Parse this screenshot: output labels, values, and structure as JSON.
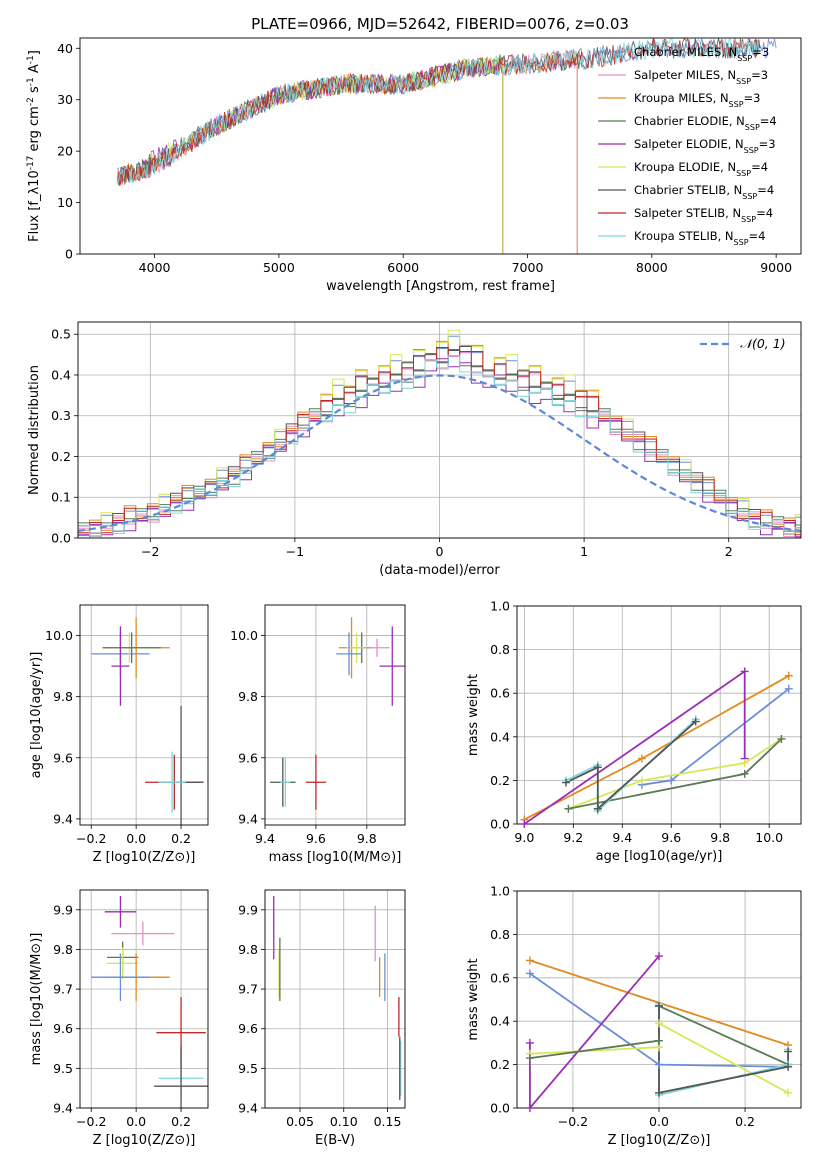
{
  "figure": {
    "title": "PLATE=0966, MJD=52642, FIBERID=0076, z=0.03"
  },
  "colors": {
    "Chabrier MILES": "#6a8fd8",
    "Salpeter MILES": "#e58fd0",
    "Kroupa MILES": "#e38a1d",
    "Chabrier ELODIE": "#5a7a56",
    "Salpeter ELODIE": "#9a2fb5",
    "Kroupa ELODIE": "#d6e85a",
    "Chabrier STELIB": "#555555",
    "Salpeter STELIB": "#c0282a",
    "Kroupa STELIB": "#7fd6dc",
    "gaussian": "#5b8ad6",
    "grid": "#b0b0b0"
  },
  "chart_data": [
    {
      "type": "line",
      "panel": "spectrum",
      "xlabel": "wavelength [Angstrom, rest frame]",
      "ylabel": "Flux [f_λ10^-17 erg cm^-2 s^-1 A^-1]",
      "xlim": [
        3400,
        9200
      ],
      "ylim": [
        0,
        42
      ],
      "xticks": [
        "4000",
        "5000",
        "6000",
        "7000",
        "8000",
        "9000"
      ],
      "yticks": [
        "0",
        "10",
        "20",
        "30",
        "40"
      ],
      "grid": false,
      "legend_position": "top-right",
      "series": [
        {
          "name": "Chabrier MILES, N_SSP=3",
          "key": "Chabrier MILES",
          "x": [
            3700,
            4000,
            4500,
            5000,
            5500,
            6000,
            6500,
            7000,
            7400,
            8000,
            8500,
            9000
          ],
          "y": [
            15,
            17,
            25,
            31,
            33,
            33,
            36,
            37,
            38,
            40,
            40,
            40
          ]
        },
        {
          "name": "Salpeter MILES, N_SSP=3",
          "key": "Salpeter MILES",
          "x": [
            3700,
            4000,
            4500,
            5000,
            5500,
            6000,
            6500,
            7000,
            7400
          ],
          "y": [
            15,
            17,
            25,
            31,
            33,
            33,
            36,
            37,
            38
          ]
        },
        {
          "name": "Kroupa MILES, N_SSP=3",
          "key": "Kroupa MILES",
          "x": [
            3700,
            4000,
            4500,
            5000,
            5500,
            6000,
            6500,
            7000,
            7400
          ],
          "y": [
            15,
            17,
            25,
            31,
            33,
            33,
            36,
            37,
            38
          ]
        },
        {
          "name": "Chabrier ELODIE, N_SSP=4",
          "key": "Chabrier ELODIE",
          "x": [
            3900,
            4500,
            5000,
            5500,
            6000,
            6500,
            6800
          ],
          "y": [
            17,
            25,
            31,
            33,
            33,
            36,
            37
          ]
        },
        {
          "name": "Salpeter ELODIE, N_SSP=3",
          "key": "Salpeter ELODIE",
          "x": [
            3900,
            4500,
            5000,
            5500,
            6000,
            6500,
            6800
          ],
          "y": [
            17,
            25,
            31,
            33,
            33,
            36,
            37
          ]
        },
        {
          "name": "Kroupa ELODIE, N_SSP=4",
          "key": "Kroupa ELODIE",
          "x": [
            3900,
            4500,
            5000,
            5500,
            6000,
            6500,
            6800
          ],
          "y": [
            17,
            25,
            31,
            33,
            33,
            36,
            37
          ]
        },
        {
          "name": "Chabrier STELIB, N_SSP=4",
          "key": "Chabrier STELIB",
          "x": [
            3700,
            4000,
            4500,
            5000,
            5500,
            6000,
            6500,
            7000,
            7500,
            8000,
            8500,
            8870
          ],
          "y": [
            15,
            17,
            25,
            31,
            33,
            33,
            36,
            37,
            38,
            40,
            40,
            40
          ]
        },
        {
          "name": "Salpeter STELIB, N_SSP=4",
          "key": "Salpeter STELIB",
          "x": [
            3700,
            4000,
            4500,
            5000,
            5500,
            6000,
            6500,
            7000,
            7500,
            8000,
            8500,
            8870
          ],
          "y": [
            15,
            17,
            25,
            31,
            33,
            33,
            36,
            37,
            38,
            40,
            40,
            40
          ]
        },
        {
          "name": "Kroupa STELIB, N_SSP=4",
          "key": "Kroupa STELIB",
          "x": [
            3700,
            4000,
            4500,
            5000,
            5500,
            6000,
            6500,
            7000,
            7500,
            8000,
            8500,
            8870
          ],
          "y": [
            15,
            17,
            25,
            31,
            33,
            33,
            36,
            37,
            38,
            40,
            40,
            40
          ]
        }
      ]
    },
    {
      "type": "line",
      "panel": "residuals",
      "xlabel": "(data-model)/error",
      "ylabel": "Normed distribution",
      "xlim": [
        -2.5,
        2.5
      ],
      "ylim": [
        0,
        0.53
      ],
      "xticks": [
        "−2",
        "−1",
        "0",
        "1",
        "2"
      ],
      "yticks": [
        "0.0",
        "0.1",
        "0.2",
        "0.3",
        "0.4",
        "0.5"
      ],
      "grid": true,
      "legend_position": "top-right",
      "legend_label": "𝒩(0, 1)",
      "bin_edges_start": -2.5,
      "bin_width": 0.1,
      "histogram_base": [
        0.02,
        0.025,
        0.03,
        0.04,
        0.05,
        0.055,
        0.065,
        0.075,
        0.09,
        0.1,
        0.11,
        0.125,
        0.14,
        0.155,
        0.175,
        0.195,
        0.215,
        0.235,
        0.26,
        0.28,
        0.3,
        0.32,
        0.34,
        0.35,
        0.37,
        0.38,
        0.39,
        0.4,
        0.41,
        0.42,
        0.44,
        0.45,
        0.46,
        0.45,
        0.43,
        0.4,
        0.41,
        0.4,
        0.39,
        0.38,
        0.37,
        0.36,
        0.35,
        0.34,
        0.32,
        0.3,
        0.28,
        0.26,
        0.24,
        0.22,
        0.2,
        0.18,
        0.16,
        0.14,
        0.12,
        0.1,
        0.08,
        0.065,
        0.05,
        0.04,
        0.035,
        0.03,
        0.025,
        0.02
      ],
      "series": [
        {
          "name": "Chabrier MILES",
          "key": "Chabrier MILES",
          "offset": 0.01
        },
        {
          "name": "Salpeter MILES",
          "key": "Salpeter MILES",
          "offset": -0.01
        },
        {
          "name": "Kroupa MILES",
          "key": "Kroupa MILES",
          "offset": 0.015
        },
        {
          "name": "Chabrier ELODIE",
          "key": "Chabrier ELODIE",
          "offset": -0.005
        },
        {
          "name": "Salpeter ELODIE",
          "key": "Salpeter ELODIE",
          "offset": -0.02
        },
        {
          "name": "Kroupa ELODIE",
          "key": "Kroupa ELODIE",
          "offset": 0.02
        },
        {
          "name": "Chabrier STELIB",
          "key": "Chabrier STELIB",
          "offset": 0.0
        },
        {
          "name": "Salpeter STELIB",
          "key": "Salpeter STELIB",
          "offset": 0.005
        },
        {
          "name": "Kroupa STELIB",
          "key": "Kroupa STELIB",
          "offset": -0.015
        }
      ]
    },
    {
      "type": "scatter",
      "panel": "Z-age",
      "xlabel": "Z [log10(Z/Z⊙)]",
      "ylabel": "age [log10(age/yr)]",
      "xlim": [
        -0.25,
        0.32
      ],
      "ylim": [
        9.38,
        10.1
      ],
      "xticks": [
        "−0.2",
        "0.0",
        "0.2"
      ],
      "yticks": [
        "9.4",
        "9.6",
        "9.8",
        "10.0"
      ],
      "grid": true,
      "points": [
        {
          "key": "Chabrier MILES",
          "x": -0.07,
          "y": 9.94,
          "xerr": 0.13,
          "yerr": 0.07
        },
        {
          "key": "Kroupa MILES",
          "x": 0.0,
          "y": 9.96,
          "xerr": 0.15,
          "yerr": 0.1
        },
        {
          "key": "Kroupa ELODIE",
          "x": -0.03,
          "y": 9.96,
          "xerr": 0.12,
          "yerr": 0.05
        },
        {
          "key": "Chabrier ELODIE",
          "x": -0.02,
          "y": 9.96,
          "xerr": 0.13,
          "yerr": 0.05
        },
        {
          "key": "Salpeter ELODIE",
          "x": -0.07,
          "y": 9.9,
          "xerr": 0.04,
          "yerr": 0.13
        },
        {
          "key": "Salpeter STELIB",
          "x": 0.17,
          "y": 9.52,
          "xerr": 0.13,
          "yerr": 0.09
        },
        {
          "key": "Chabrier STELIB",
          "x": 0.2,
          "y": 9.52,
          "xerr": 0.1,
          "yerr": 0.25
        },
        {
          "key": "Kroupa STELIB",
          "x": 0.16,
          "y": 9.52,
          "xerr": 0.06,
          "yerr": 0.1
        }
      ]
    },
    {
      "type": "scatter",
      "panel": "mass-age",
      "xlabel": "mass [log10(M/M⊙)]",
      "ylabel": "",
      "xlim": [
        9.4,
        9.95
      ],
      "ylim": [
        9.38,
        10.1
      ],
      "xticks": [
        "9.4",
        "9.6",
        "9.8"
      ],
      "yticks": [
        "9.4",
        "9.6",
        "9.8",
        "10.0"
      ],
      "grid": true,
      "points": [
        {
          "key": "Kroupa MILES",
          "x": 9.74,
          "y": 9.96,
          "xerr": 0.05,
          "yerr": 0.1
        },
        {
          "key": "Chabrier ELODIE",
          "x": 9.78,
          "y": 9.96,
          "xerr": 0.04,
          "yerr": 0.05
        },
        {
          "key": "Kroupa ELODIE",
          "x": 9.76,
          "y": 9.96,
          "xerr": 0.04,
          "yerr": 0.05
        },
        {
          "key": "Chabrier MILES",
          "x": 9.73,
          "y": 9.94,
          "xerr": 0.05,
          "yerr": 0.07
        },
        {
          "key": "Salpeter MILES",
          "x": 9.84,
          "y": 9.96,
          "xerr": 0.05,
          "yerr": 0.03
        },
        {
          "key": "Salpeter ELODIE",
          "x": 9.9,
          "y": 9.9,
          "xerr": 0.05,
          "yerr": 0.13
        },
        {
          "key": "Chabrier STELIB",
          "x": 9.47,
          "y": 9.52,
          "xerr": 0.05,
          "yerr": 0.08
        },
        {
          "key": "Kroupa STELIB",
          "x": 9.48,
          "y": 9.52,
          "xerr": 0.02,
          "yerr": 0.08
        },
        {
          "key": "Salpeter STELIB",
          "x": 9.6,
          "y": 9.52,
          "xerr": 0.04,
          "yerr": 0.09
        }
      ]
    },
    {
      "type": "line",
      "panel": "age-massweight",
      "xlabel": "age [log10(age/yr)]",
      "ylabel": "mass weight",
      "xlim": [
        8.97,
        10.13
      ],
      "ylim": [
        0,
        1
      ],
      "xticks": [
        "9.0",
        "9.2",
        "9.4",
        "9.6",
        "9.8",
        "10.0"
      ],
      "yticks": [
        "0.0",
        "0.2",
        "0.4",
        "0.6",
        "0.8",
        "1.0"
      ],
      "grid": true,
      "series": [
        {
          "key": "Chabrier MILES",
          "x": [
            10.08,
            9.6,
            9.48
          ],
          "y": [
            0.62,
            0.2,
            0.18
          ]
        },
        {
          "key": "Kroupa MILES",
          "x": [
            9.0,
            9.48,
            10.08
          ],
          "y": [
            0.02,
            0.3,
            0.68
          ]
        },
        {
          "key": "Salpeter ELODIE",
          "x": [
            9.0,
            9.9,
            9.9
          ],
          "y": [
            0.0,
            0.7,
            0.3
          ]
        },
        {
          "key": "Kroupa ELODIE",
          "x": [
            9.18,
            9.48,
            9.9,
            10.05
          ],
          "y": [
            0.07,
            0.2,
            0.28,
            0.39
          ]
        },
        {
          "key": "Chabrier ELODIE",
          "x": [
            9.18,
            9.9,
            10.05
          ],
          "y": [
            0.07,
            0.23,
            0.39
          ]
        },
        {
          "key": "Kroupa STELIB",
          "x": [
            9.17,
            9.3,
            9.3,
            9.7
          ],
          "y": [
            0.2,
            0.27,
            0.06,
            0.48
          ]
        },
        {
          "key": "Chabrier STELIB",
          "x": [
            9.17,
            9.3,
            9.3,
            9.7
          ],
          "y": [
            0.19,
            0.26,
            0.07,
            0.47
          ]
        }
      ]
    },
    {
      "type": "scatter",
      "panel": "Z-mass",
      "xlabel": "Z [log10(Z/Z⊙)]",
      "ylabel": "mass [log10(M/M⊙)]",
      "xlim": [
        -0.25,
        0.32
      ],
      "ylim": [
        9.4,
        9.95
      ],
      "xticks": [
        "−0.2",
        "0.0",
        "0.2"
      ],
      "yticks": [
        "9.4",
        "9.5",
        "9.6",
        "9.7",
        "9.8",
        "9.9"
      ],
      "grid": true,
      "points": [
        {
          "key": "Salpeter ELODIE",
          "x": -0.07,
          "y": 9.895,
          "xerr": 0.07,
          "yerr": 0.04
        },
        {
          "key": "Salpeter MILES",
          "x": 0.03,
          "y": 9.84,
          "xerr": 0.14,
          "yerr": 0.03
        },
        {
          "key": "Chabrier ELODIE",
          "x": -0.06,
          "y": 9.78,
          "xerr": 0.07,
          "yerr": 0.04
        },
        {
          "key": "Kroupa ELODIE",
          "x": -0.06,
          "y": 9.765,
          "xerr": 0.07,
          "yerr": 0.04
        },
        {
          "key": "Kroupa MILES",
          "x": 0.0,
          "y": 9.73,
          "xerr": 0.15,
          "yerr": 0.06
        },
        {
          "key": "Chabrier MILES",
          "x": -0.07,
          "y": 9.73,
          "xerr": 0.13,
          "yerr": 0.06
        },
        {
          "key": "Salpeter STELIB",
          "x": 0.2,
          "y": 9.59,
          "xerr": 0.11,
          "yerr": 0.09
        },
        {
          "key": "Kroupa STELIB",
          "x": 0.2,
          "y": 9.475,
          "xerr": 0.1,
          "yerr": 0.05
        },
        {
          "key": "Chabrier STELIB",
          "x": 0.2,
          "y": 9.455,
          "xerr": 0.12,
          "yerr": 0.1
        }
      ]
    },
    {
      "type": "scatter",
      "panel": "EBV-mass",
      "xlabel": "E(B-V)",
      "ylabel": "",
      "xlim": [
        0.01,
        0.17
      ],
      "ylim": [
        9.4,
        9.95
      ],
      "xticks": [
        "0.05",
        "0.10",
        "0.15"
      ],
      "yticks": [
        "9.4",
        "9.5",
        "9.6",
        "9.7",
        "9.8",
        "9.9"
      ],
      "grid": true,
      "points": [
        {
          "key": "Salpeter ELODIE",
          "x": 0.02,
          "y": 9.855,
          "yerr": 0.08
        },
        {
          "key": "Kroupa ELODIE",
          "x": 0.026,
          "y": 9.74,
          "yerr": 0.06
        },
        {
          "key": "Chabrier ELODIE",
          "x": 0.027,
          "y": 9.75,
          "yerr": 0.08
        },
        {
          "key": "Salpeter MILES",
          "x": 0.136,
          "y": 9.84,
          "yerr": 0.07
        },
        {
          "key": "Kroupa MILES",
          "x": 0.141,
          "y": 9.73,
          "yerr": 0.05
        },
        {
          "key": "Chabrier MILES",
          "x": 0.147,
          "y": 9.73,
          "yerr": 0.06
        },
        {
          "key": "Salpeter STELIB",
          "x": 0.163,
          "y": 9.63,
          "yerr": 0.05
        },
        {
          "key": "Kroupa STELIB",
          "x": 0.165,
          "y": 9.5,
          "yerr": 0.07
        },
        {
          "key": "Chabrier STELIB",
          "x": 0.164,
          "y": 9.5,
          "yerr": 0.08
        }
      ]
    },
    {
      "type": "line",
      "panel": "Z-massweight",
      "xlabel": "Z [log10(Z/Z⊙)]",
      "ylabel": "mass weight",
      "xlim": [
        -0.33,
        0.33
      ],
      "ylim": [
        0,
        1
      ],
      "xticks": [
        "−0.2",
        "0.0",
        "0.2"
      ],
      "yticks": [
        "0.0",
        "0.2",
        "0.4",
        "0.6",
        "0.8",
        "1.0"
      ],
      "grid": true,
      "series": [
        {
          "key": "Kroupa MILES",
          "x": [
            -0.3,
            0.3
          ],
          "y": [
            0.68,
            0.29
          ]
        },
        {
          "key": "Chabrier MILES",
          "x": [
            -0.3,
            0.0,
            0.3
          ],
          "y": [
            0.62,
            0.2,
            0.19
          ]
        },
        {
          "key": "Salpeter ELODIE",
          "x": [
            -0.3,
            -0.3,
            0.0
          ],
          "y": [
            0.3,
            0.0,
            0.7
          ]
        },
        {
          "key": "Kroupa ELODIE",
          "x": [
            -0.3,
            0.0,
            0.0,
            0.3
          ],
          "y": [
            0.25,
            0.28,
            0.39,
            0.07
          ]
        },
        {
          "key": "Chabrier ELODIE",
          "x": [
            -0.3,
            0.0,
            0.0,
            0.3
          ],
          "y": [
            0.23,
            0.31,
            0.47,
            0.2
          ]
        },
        {
          "key": "Kroupa STELIB",
          "x": [
            0.0,
            0.0,
            0.3,
            0.3
          ],
          "y": [
            0.48,
            0.06,
            0.2,
            0.27
          ]
        },
        {
          "key": "Chabrier STELIB",
          "x": [
            0.0,
            0.0,
            0.3,
            0.3
          ],
          "y": [
            0.47,
            0.07,
            0.19,
            0.26
          ]
        }
      ]
    }
  ]
}
